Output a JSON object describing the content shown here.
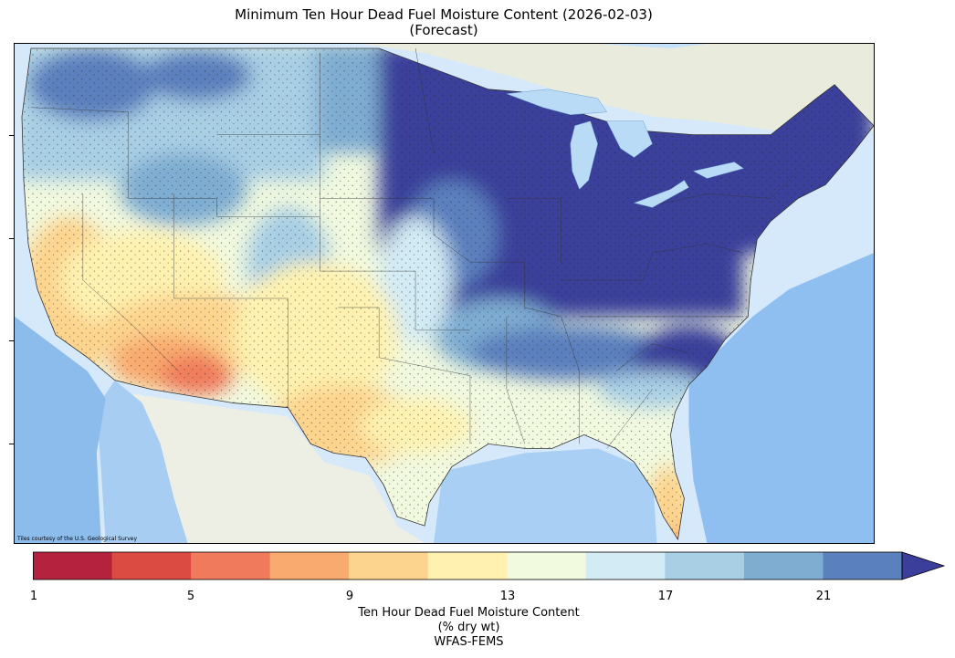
{
  "title": {
    "line1": "Minimum Ten Hour Dead Fuel Moisture Content (2026-02-03)",
    "line2": "(Forecast)"
  },
  "map": {
    "region": "Contiguous United States",
    "credit": "Tiles courtesy of the U.S. Geological Survey",
    "ocean_color": "#d6e9fb",
    "land_color": "#eef0e6",
    "state_line_color": "#333333",
    "station_marker": "dot"
  },
  "colorbar": {
    "label_line1": "Ten Hour Dead Fuel Moisture Content",
    "label_line2": "(% dry wt)",
    "label_line3": "WFAS-FEMS",
    "ticks": [
      "1",
      "5",
      "9",
      "13",
      "17",
      "21"
    ],
    "bins": [
      1,
      3,
      5,
      7,
      9,
      11,
      13,
      15,
      17,
      19,
      21,
      23
    ],
    "colors": [
      "#b5223e",
      "#dc4b42",
      "#f07b5c",
      "#f9aa6e",
      "#fdd48e",
      "#fff2b0",
      "#f1f9df",
      "#d3ebf4",
      "#a9cfe5",
      "#7fadd2",
      "#5b80be"
    ],
    "extend_color": "#3b3f9b",
    "extend": "max"
  }
}
